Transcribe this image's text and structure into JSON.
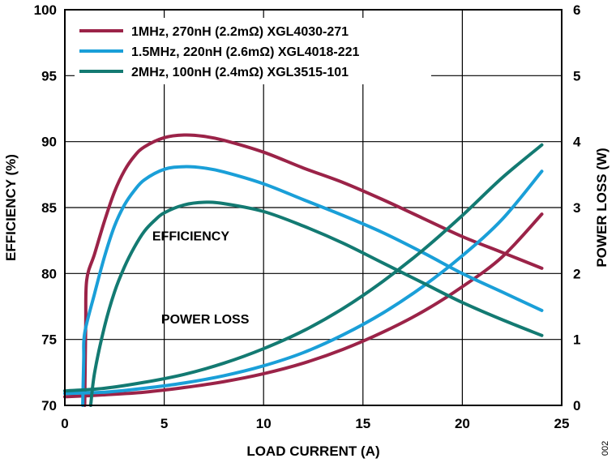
{
  "chart_data": {
    "type": "line",
    "title": "",
    "xlabel": "LOAD CURRENT (A)",
    "ylabel_left": "EFFICIENCY (%)",
    "ylabel_right": "POWER LOSS (W)",
    "xlim": [
      0,
      25
    ],
    "ylim_left": [
      70,
      100
    ],
    "ylim_right": [
      0,
      6
    ],
    "x_ticks": [
      "0",
      "5",
      "10",
      "15",
      "20",
      "25"
    ],
    "y_left_ticks": [
      "70",
      "75",
      "80",
      "85",
      "90",
      "95",
      "100"
    ],
    "y_right_ticks": [
      "0",
      "1",
      "2",
      "3",
      "4",
      "5",
      "6"
    ],
    "grid": true,
    "legend_position": "top-left",
    "annotations": {
      "efficiency": "EFFICIENCY",
      "power_loss": "POWER LOSS"
    },
    "figure_id": "002",
    "series": [
      {
        "name": "1MHz, 270nH (2.2mΩ) XGL4030-271",
        "color": "#9b2348",
        "efficiency": {
          "x": [
            1.0,
            1.05,
            1.1,
            1.5,
            2.0,
            2.5,
            3.0,
            3.5,
            4.0,
            5.0,
            6.0,
            7.0,
            8.0,
            10.0,
            12.0,
            14.0,
            16.0,
            18.0,
            20.0,
            22.0,
            24.0
          ],
          "y": [
            70.0,
            76.0,
            79.5,
            81.5,
            84.0,
            86.2,
            87.8,
            88.9,
            89.6,
            90.3,
            90.5,
            90.4,
            90.1,
            89.2,
            88.0,
            86.9,
            85.6,
            84.2,
            82.8,
            81.6,
            80.4
          ]
        },
        "power_loss": {
          "x": [
            0,
            2,
            4,
            6,
            8,
            10,
            12,
            14,
            16,
            18,
            20,
            22,
            24
          ],
          "y": [
            0.13,
            0.16,
            0.2,
            0.27,
            0.36,
            0.48,
            0.64,
            0.85,
            1.11,
            1.42,
            1.8,
            2.25,
            2.9
          ]
        }
      },
      {
        "name": "1.5MHz, 220nH (2.6mΩ) XGL4018-221",
        "color": "#1a9fd8",
        "efficiency": {
          "x": [
            0.9,
            0.95,
            1.0,
            1.5,
            2.0,
            2.5,
            3.0,
            3.5,
            4.0,
            5.0,
            6.0,
            7.0,
            8.0,
            10.0,
            12.0,
            14.0,
            16.0,
            18.0,
            20.0,
            22.0,
            24.0
          ],
          "y": [
            70.0,
            73.5,
            75.5,
            78.5,
            81.3,
            83.6,
            85.2,
            86.3,
            87.1,
            87.9,
            88.1,
            88.0,
            87.7,
            86.8,
            85.6,
            84.4,
            83.1,
            81.6,
            80.0,
            78.6,
            77.2
          ]
        },
        "power_loss": {
          "x": [
            0,
            2,
            4,
            6,
            8,
            10,
            12,
            14,
            16,
            18,
            20,
            22,
            24
          ],
          "y": [
            0.18,
            0.2,
            0.26,
            0.34,
            0.45,
            0.6,
            0.8,
            1.07,
            1.4,
            1.8,
            2.27,
            2.82,
            3.55
          ]
        }
      },
      {
        "name": "2MHz, 100nH (2.4mΩ) XGL3515-101",
        "color": "#137a72",
        "efficiency": {
          "x": [
            1.3,
            1.5,
            2.0,
            2.5,
            3.0,
            3.5,
            4.0,
            4.5,
            5.0,
            6.0,
            7.0,
            8.0,
            10.0,
            12.0,
            14.0,
            16.0,
            18.0,
            20.0,
            22.0,
            24.0
          ],
          "y": [
            70.0,
            72.5,
            76.0,
            78.6,
            80.5,
            82.0,
            83.2,
            84.0,
            84.6,
            85.2,
            85.4,
            85.3,
            84.7,
            83.6,
            82.3,
            80.8,
            79.3,
            77.8,
            76.5,
            75.3
          ]
        },
        "power_loss": {
          "x": [
            0,
            2,
            4,
            6,
            8,
            10,
            12,
            14,
            16,
            18,
            20,
            22,
            24
          ],
          "y": [
            0.22,
            0.26,
            0.35,
            0.47,
            0.64,
            0.86,
            1.13,
            1.47,
            1.88,
            2.35,
            2.88,
            3.45,
            3.95
          ]
        }
      }
    ]
  }
}
